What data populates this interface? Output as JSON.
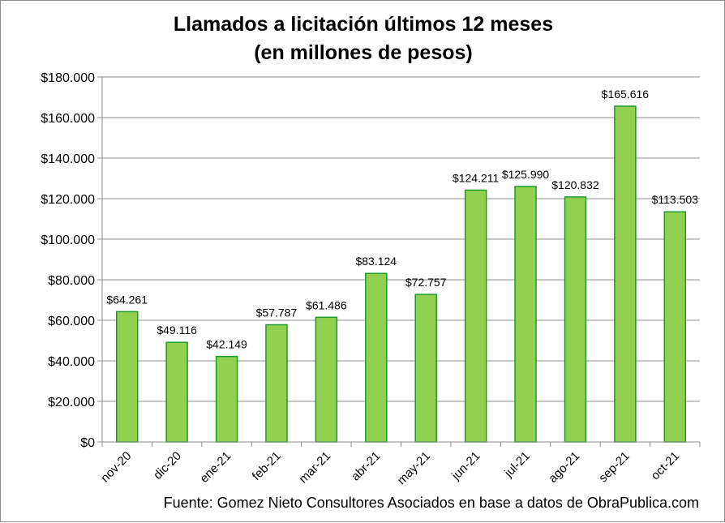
{
  "chart_data": {
    "type": "bar",
    "title": "Llamados a licitación últimos 12 meses",
    "subtitle": "(en millones de pesos)",
    "xlabel": "",
    "ylabel": "",
    "categories": [
      "nov-20",
      "dic-20",
      "ene-21",
      "feb-21",
      "mar-21",
      "abr-21",
      "may-21",
      "jun-21",
      "jul-21",
      "ago-21",
      "sep-21",
      "oct-21"
    ],
    "values": [
      64261,
      49116,
      42149,
      57787,
      61486,
      83124,
      72757,
      124211,
      125990,
      120832,
      165616,
      113503
    ],
    "data_labels": [
      "$64.261",
      "$49.116",
      "$42.149",
      "$57.787",
      "$61.486",
      "$83.124",
      "$72.757",
      "$124.211",
      "$125.990",
      "$120.832",
      "$165.616",
      "$113.503"
    ],
    "ylim": [
      0,
      180000
    ],
    "y_ticks": [
      0,
      20000,
      40000,
      60000,
      80000,
      100000,
      120000,
      140000,
      160000,
      180000
    ],
    "y_tick_labels": [
      "$0",
      "$20.000",
      "$40.000",
      "$60.000",
      "$80.000",
      "$100.000",
      "$120.000",
      "$140.000",
      "$160.000",
      "$180.000"
    ],
    "grid": true,
    "legend": "none",
    "colors": {
      "bar_fill": "#92d050",
      "bar_stroke": "#1e9a2a",
      "grid": "#8c8c8c",
      "axis": "#8c8c8c"
    }
  },
  "footer": {
    "source": "Fuente: Gomez Nieto Consultores Asociados en base a datos de ObraPublica.com"
  }
}
